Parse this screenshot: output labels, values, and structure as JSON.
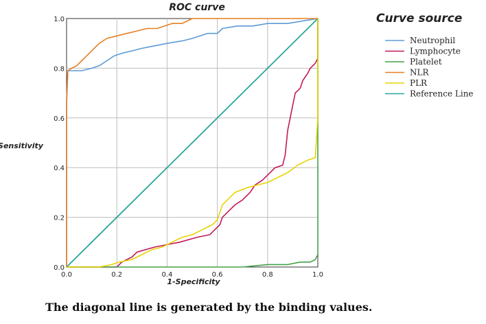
{
  "chart_data": {
    "type": "line",
    "title": "ROC curve",
    "xlabel": "1-Specificity",
    "ylabel": "Sensitivity",
    "xlim": [
      0,
      1
    ],
    "ylim": [
      0,
      1
    ],
    "xticks": [
      "0.0",
      "0.2",
      "0.4",
      "0.6",
      "0.8",
      "1.0"
    ],
    "yticks": [
      "0.0",
      "0.2",
      "0.4",
      "0.6",
      "0.8",
      "1.0"
    ],
    "grid": true,
    "legend_title": "Curve source",
    "legend_position": "right",
    "series": [
      {
        "name": "Neutrophil",
        "color": "#5b9bd5",
        "points": [
          [
            0,
            0
          ],
          [
            0,
            0.67
          ],
          [
            0.005,
            0.79
          ],
          [
            0.03,
            0.79
          ],
          [
            0.06,
            0.79
          ],
          [
            0.1,
            0.8
          ],
          [
            0.13,
            0.81
          ],
          [
            0.16,
            0.83
          ],
          [
            0.19,
            0.85
          ],
          [
            0.22,
            0.86
          ],
          [
            0.26,
            0.87
          ],
          [
            0.3,
            0.88
          ],
          [
            0.35,
            0.89
          ],
          [
            0.4,
            0.9
          ],
          [
            0.46,
            0.91
          ],
          [
            0.5,
            0.92
          ],
          [
            0.56,
            0.94
          ],
          [
            0.6,
            0.94
          ],
          [
            0.62,
            0.96
          ],
          [
            0.68,
            0.97
          ],
          [
            0.74,
            0.97
          ],
          [
            0.8,
            0.98
          ],
          [
            0.88,
            0.98
          ],
          [
            0.94,
            0.99
          ],
          [
            1,
            1
          ]
        ]
      },
      {
        "name": "Lymphocyte",
        "color": "#c2185b",
        "points": [
          [
            0,
            0
          ],
          [
            0.2,
            0
          ],
          [
            0.22,
            0.02
          ],
          [
            0.26,
            0.04
          ],
          [
            0.28,
            0.06
          ],
          [
            0.35,
            0.08
          ],
          [
            0.45,
            0.1
          ],
          [
            0.52,
            0.12
          ],
          [
            0.57,
            0.13
          ],
          [
            0.59,
            0.15
          ],
          [
            0.61,
            0.17
          ],
          [
            0.62,
            0.2
          ],
          [
            0.64,
            0.22
          ],
          [
            0.67,
            0.25
          ],
          [
            0.7,
            0.27
          ],
          [
            0.73,
            0.3
          ],
          [
            0.75,
            0.33
          ],
          [
            0.78,
            0.35
          ],
          [
            0.8,
            0.37
          ],
          [
            0.83,
            0.4
          ],
          [
            0.86,
            0.41
          ],
          [
            0.87,
            0.45
          ],
          [
            0.88,
            0.55
          ],
          [
            0.9,
            0.65
          ],
          [
            0.91,
            0.7
          ],
          [
            0.93,
            0.72
          ],
          [
            0.94,
            0.75
          ],
          [
            0.96,
            0.78
          ],
          [
            0.97,
            0.8
          ],
          [
            0.99,
            0.82
          ],
          [
            1,
            0.84
          ],
          [
            1,
            1
          ]
        ]
      },
      {
        "name": "Platelet",
        "color": "#43a047",
        "points": [
          [
            0,
            0
          ],
          [
            0.7,
            0
          ],
          [
            0.8,
            0.01
          ],
          [
            0.88,
            0.01
          ],
          [
            0.93,
            0.02
          ],
          [
            0.97,
            0.02
          ],
          [
            0.99,
            0.03
          ],
          [
            1,
            0.05
          ],
          [
            1,
            0.55
          ],
          [
            1,
            1
          ]
        ]
      },
      {
        "name": "NLR",
        "color": "#e67e22",
        "points": [
          [
            0,
            0
          ],
          [
            0,
            0.65
          ],
          [
            0.005,
            0.79
          ],
          [
            0.02,
            0.8
          ],
          [
            0.04,
            0.81
          ],
          [
            0.06,
            0.83
          ],
          [
            0.08,
            0.85
          ],
          [
            0.1,
            0.87
          ],
          [
            0.13,
            0.9
          ],
          [
            0.16,
            0.92
          ],
          [
            0.2,
            0.93
          ],
          [
            0.24,
            0.94
          ],
          [
            0.28,
            0.95
          ],
          [
            0.32,
            0.96
          ],
          [
            0.36,
            0.96
          ],
          [
            0.42,
            0.98
          ],
          [
            0.46,
            0.98
          ],
          [
            0.48,
            0.99
          ],
          [
            0.5,
            1
          ],
          [
            1,
            1
          ]
        ]
      },
      {
        "name": "PLR",
        "color": "#e6d300",
        "points": [
          [
            0,
            0
          ],
          [
            0.13,
            0
          ],
          [
            0.18,
            0.01
          ],
          [
            0.21,
            0.02
          ],
          [
            0.26,
            0.03
          ],
          [
            0.3,
            0.05
          ],
          [
            0.34,
            0.07
          ],
          [
            0.38,
            0.08
          ],
          [
            0.42,
            0.1
          ],
          [
            0.46,
            0.12
          ],
          [
            0.5,
            0.13
          ],
          [
            0.54,
            0.15
          ],
          [
            0.58,
            0.17
          ],
          [
            0.6,
            0.19
          ],
          [
            0.61,
            0.22
          ],
          [
            0.62,
            0.25
          ],
          [
            0.64,
            0.27
          ],
          [
            0.67,
            0.3
          ],
          [
            0.72,
            0.32
          ],
          [
            0.76,
            0.33
          ],
          [
            0.8,
            0.34
          ],
          [
            0.84,
            0.36
          ],
          [
            0.88,
            0.38
          ],
          [
            0.92,
            0.41
          ],
          [
            0.96,
            0.43
          ],
          [
            0.99,
            0.44
          ],
          [
            1,
            0.6
          ],
          [
            1,
            1
          ]
        ]
      },
      {
        "name": "Reference Line",
        "color": "#26a69a",
        "points": [
          [
            0,
            0
          ],
          [
            1,
            1
          ]
        ]
      }
    ]
  },
  "caption": "The diagonal line is generated by the binding values."
}
